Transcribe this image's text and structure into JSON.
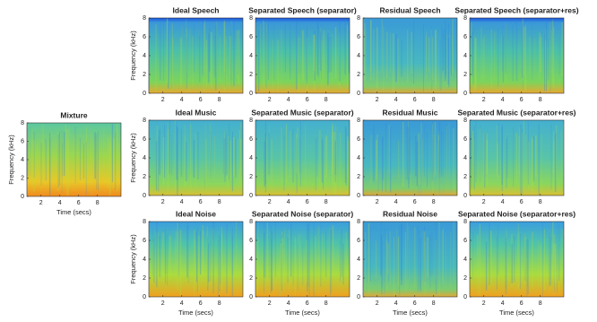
{
  "chart_data": [
    {
      "type": "spectrogram",
      "title": "Mixture",
      "xlabel": "Time (secs)",
      "ylabel": "Frequency (kHz)",
      "xlim": [
        0.5,
        10.5
      ],
      "ylim": [
        0,
        8
      ],
      "xticks": [
        2,
        4,
        6,
        8
      ],
      "yticks": [
        0,
        2,
        4,
        6,
        8
      ]
    },
    {
      "type": "spectrogram",
      "title": "Ideal Speech",
      "ylabel": "Frequency (kHz)",
      "xlim": [
        0.5,
        10.5
      ],
      "ylim": [
        0,
        8
      ],
      "xticks": [
        2,
        4,
        6,
        8
      ],
      "yticks": [
        0,
        2,
        4,
        6,
        8
      ]
    },
    {
      "type": "spectrogram",
      "title": "Separated Speech (separator)",
      "xlim": [
        0.5,
        10.5
      ],
      "ylim": [
        0,
        8
      ],
      "xticks": [
        2,
        4,
        6,
        8
      ],
      "yticks": [
        0,
        2,
        4,
        6,
        8
      ]
    },
    {
      "type": "spectrogram",
      "title": "Residual Speech",
      "xlim": [
        0.5,
        10.5
      ],
      "ylim": [
        0,
        8
      ],
      "xticks": [
        2,
        4,
        6,
        8
      ],
      "yticks": [
        0,
        2,
        4,
        6,
        8
      ]
    },
    {
      "type": "spectrogram",
      "title": "Separated Speech (separator+res)",
      "xlim": [
        0.5,
        10.5
      ],
      "ylim": [
        0,
        8
      ],
      "xticks": [
        2,
        4,
        6,
        8
      ],
      "yticks": [
        0,
        2,
        4,
        6,
        8
      ]
    },
    {
      "type": "spectrogram",
      "title": "Ideal Music",
      "ylabel": "Frequency (kHz)",
      "xlim": [
        0.5,
        10.5
      ],
      "ylim": [
        0,
        8
      ],
      "xticks": [
        2,
        4,
        6,
        8
      ],
      "yticks": [
        0,
        2,
        4,
        6,
        8
      ]
    },
    {
      "type": "spectrogram",
      "title": "Separated Music (separator)",
      "xlim": [
        0.5,
        10.5
      ],
      "ylim": [
        0,
        8
      ],
      "xticks": [
        2,
        4,
        6,
        8
      ],
      "yticks": [
        0,
        2,
        4,
        6,
        8
      ]
    },
    {
      "type": "spectrogram",
      "title": "Residual Music",
      "xlim": [
        0.5,
        10.5
      ],
      "ylim": [
        0,
        8
      ],
      "xticks": [
        2,
        4,
        6,
        8
      ],
      "yticks": [
        0,
        2,
        4,
        6,
        8
      ]
    },
    {
      "type": "spectrogram",
      "title": "Separated Music (separator+res)",
      "xlim": [
        0.5,
        10.5
      ],
      "ylim": [
        0,
        8
      ],
      "xticks": [
        2,
        4,
        6,
        8
      ],
      "yticks": [
        0,
        2,
        4,
        6,
        8
      ]
    },
    {
      "type": "spectrogram",
      "title": "Ideal Noise",
      "xlabel": "Time (secs)",
      "ylabel": "Frequency (kHz)",
      "xlim": [
        0.5,
        10.5
      ],
      "ylim": [
        0,
        8
      ],
      "xticks": [
        2,
        4,
        6,
        8
      ],
      "yticks": [
        0,
        2,
        4,
        6,
        8
      ]
    },
    {
      "type": "spectrogram",
      "title": "Separated Noise (separator)",
      "xlabel": "Time (secs)",
      "xlim": [
        0.5,
        10.5
      ],
      "ylim": [
        0,
        8
      ],
      "xticks": [
        2,
        4,
        6,
        8
      ],
      "yticks": [
        0,
        2,
        4,
        6,
        8
      ]
    },
    {
      "type": "spectrogram",
      "title": "Residual Noise",
      "xlabel": "Time (secs)",
      "xlim": [
        0.5,
        10.5
      ],
      "ylim": [
        0,
        8
      ],
      "xticks": [
        2,
        4,
        6,
        8
      ],
      "yticks": [
        0,
        2,
        4,
        6,
        8
      ]
    },
    {
      "type": "spectrogram",
      "title": "Separated Noise (separator+res)",
      "xlabel": "Time (secs)",
      "xlim": [
        0.5,
        10.5
      ],
      "ylim": [
        0,
        8
      ],
      "xticks": [
        2,
        4,
        6,
        8
      ],
      "yticks": [
        0,
        2,
        4,
        6,
        8
      ]
    }
  ]
}
